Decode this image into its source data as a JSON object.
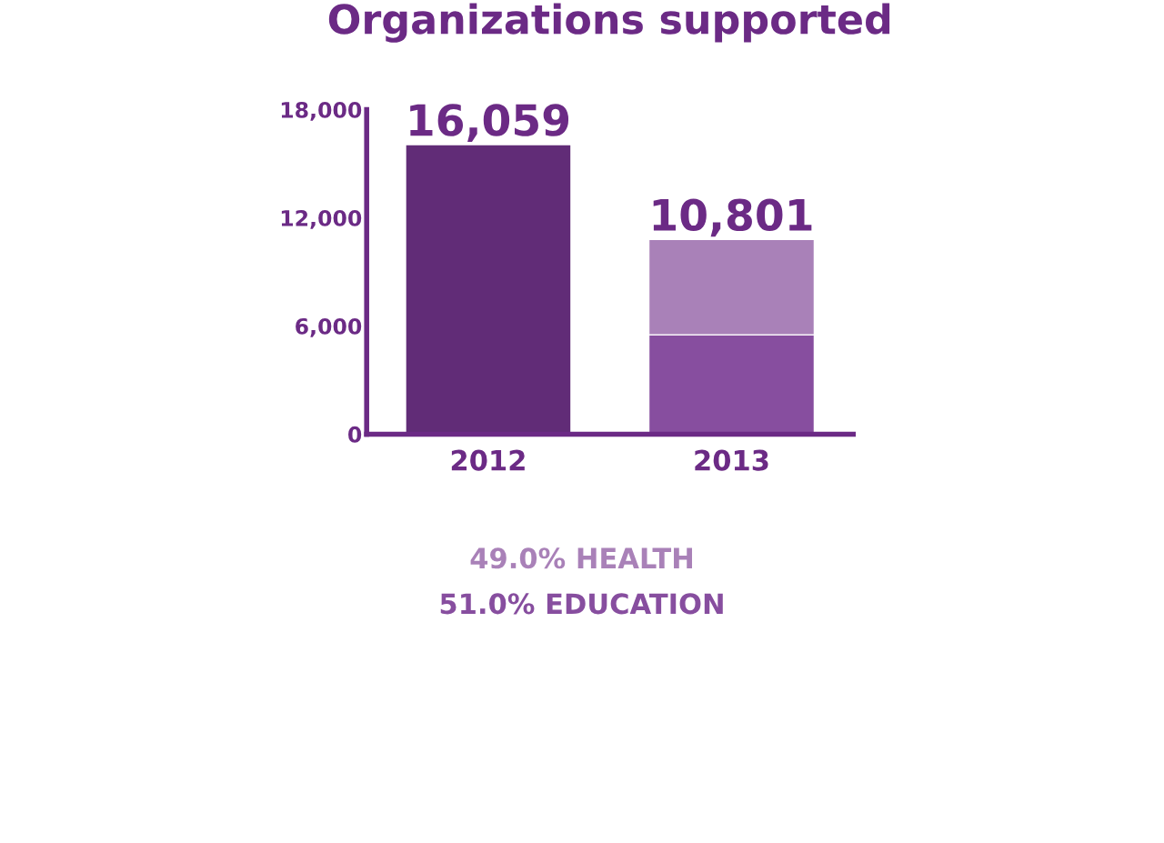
{
  "chart_data": {
    "type": "bar",
    "title": "Organizations supported",
    "stacked": true,
    "categories": [
      "2012",
      "2013"
    ],
    "series": [
      {
        "color": "#612c77",
        "values": [
          16059,
          null
        ]
      },
      {
        "name": "51.0% EDUCATION",
        "color": "#874e9f",
        "values": [
          null,
          5509
        ]
      },
      {
        "name": "49.0% HEALTH",
        "color": "#a981b8",
        "values": [
          null,
          5292
        ]
      }
    ],
    "totals": [
      "16,059",
      "10,801"
    ],
    "ylim": [
      0,
      18000
    ],
    "yticks": [
      0,
      {
        "value": 6000,
        "label": "6,000"
      },
      {
        "value": 12000,
        "label": "12,000"
      },
      {
        "value": 18000,
        "label": "18,000"
      }
    ],
    "grid": false,
    "legend": "bottom"
  }
}
